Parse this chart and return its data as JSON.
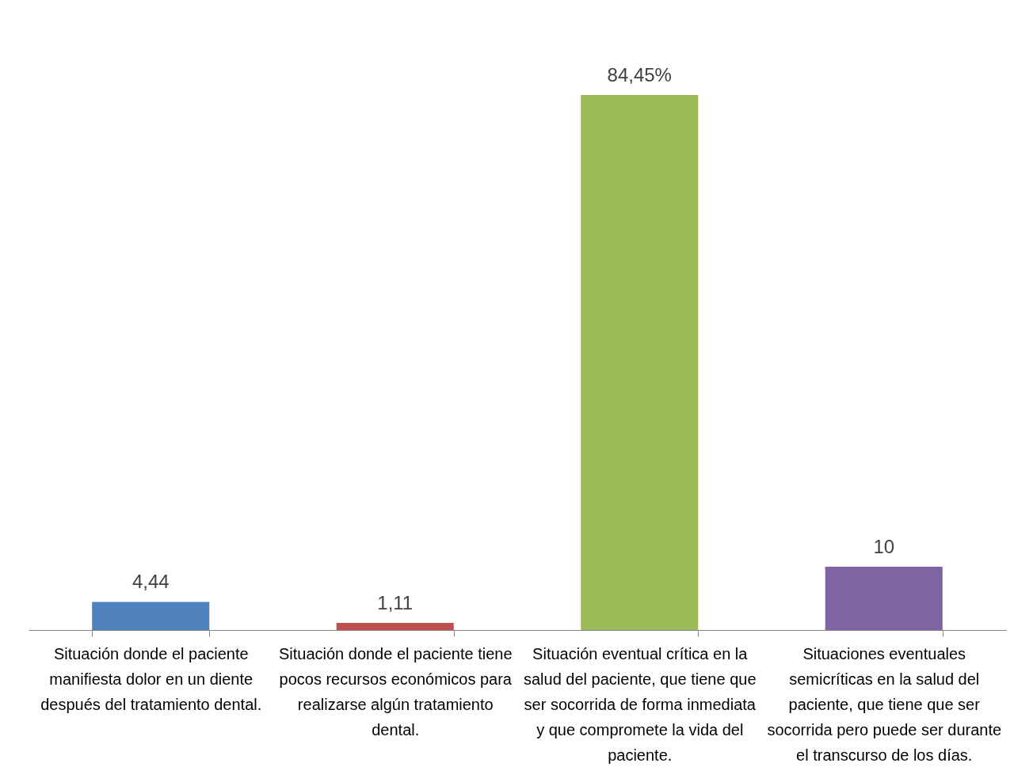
{
  "chart_data": {
    "type": "bar",
    "categories": [
      "Situación donde el paciente manifiesta dolor en un diente después del tratamiento dental.",
      "Situación donde el paciente tiene pocos recursos económicos para realizarse algún tratamiento dental.",
      "Situación eventual crítica en la salud del paciente, que tiene que ser socorrida de forma inmediata y que compromete la vida del paciente.",
      "Situaciones eventuales semicríticas en la salud del paciente, que tiene que ser socorrida pero puede ser durante el transcurso de los días."
    ],
    "values": [
      4.44,
      1.11,
      84.45,
      10
    ],
    "colors": [
      "#4f81bd",
      "#c0504d",
      "#9bbb59",
      "#8064a2"
    ],
    "value_labels": [
      "4,44",
      "1,11",
      "84,45%",
      "10"
    ]
  }
}
